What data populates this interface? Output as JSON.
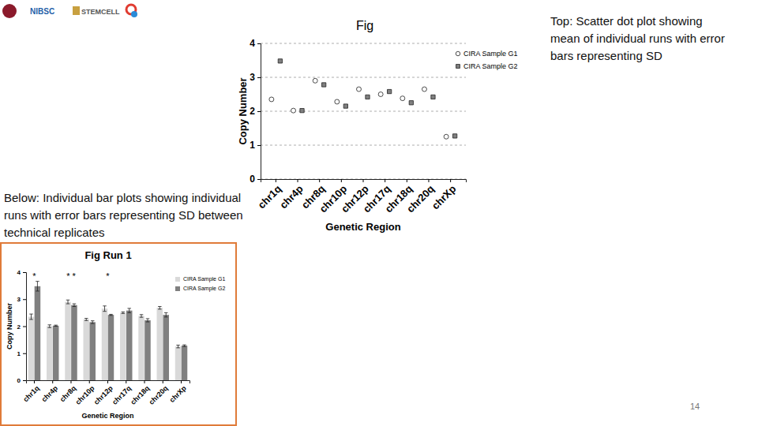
{
  "chart_data": [
    {
      "type": "scatter",
      "title": "Fig",
      "x_label": "Genetic Region",
      "y_label": "Copy Number",
      "categories": [
        "chr1q",
        "chr4p",
        "chr8q",
        "chr10p",
        "chr12p",
        "chr17q",
        "chr18q",
        "chr20q",
        "chrXp"
      ],
      "series": [
        {
          "name": "CIRA Sample G1",
          "color": "#ffffff",
          "marker": "circle",
          "values": [
            2.35,
            2.02,
            2.9,
            2.28,
            2.65,
            2.5,
            2.38,
            2.65,
            1.25
          ]
        },
        {
          "name": "CIRA Sample G2",
          "color": "#808080",
          "marker": "square",
          "values": [
            3.48,
            2.02,
            2.78,
            2.15,
            2.42,
            2.58,
            2.25,
            2.42,
            1.27
          ]
        }
      ],
      "ylim": [
        0,
        4
      ],
      "yticks": [
        0,
        1,
        2,
        3,
        4
      ],
      "grid": true,
      "legend": "top-right"
    },
    {
      "type": "bar",
      "title": "Fig Run 1",
      "x_label": "Genetic Region",
      "y_label": "Copy Number",
      "categories": [
        "chr1q",
        "chr4p",
        "chr8q",
        "chr10p",
        "chr12p",
        "chr17q",
        "chr18q",
        "chr20q",
        "chrXp"
      ],
      "series": [
        {
          "name": "CIRA Sample G1",
          "color": "#d9d9d9",
          "values": [
            2.35,
            2.0,
            2.9,
            2.25,
            2.65,
            2.5,
            2.38,
            2.68,
            1.25
          ],
          "errors": [
            0.1,
            0.05,
            0.07,
            0.04,
            0.1,
            0.03,
            0.05,
            0.05,
            0.05
          ]
        },
        {
          "name": "CIRA Sample G2",
          "color": "#808080",
          "values": [
            3.48,
            2.02,
            2.78,
            2.15,
            2.42,
            2.58,
            2.22,
            2.42,
            1.28
          ],
          "errors": [
            0.18,
            0.02,
            0.05,
            0.05,
            0.02,
            0.08,
            0.06,
            0.08,
            0.03
          ]
        }
      ],
      "ylim": [
        0,
        4
      ],
      "yticks": [
        0,
        1,
        2,
        3,
        4
      ],
      "grid": false,
      "legend": "top-right",
      "annotations": [
        {
          "text": "*",
          "x": "chr1q"
        },
        {
          "text": "* *",
          "x": "chr8q"
        },
        {
          "text": "*",
          "x": "chr12p"
        }
      ]
    }
  ],
  "slide": {
    "logos": [
      "NIBSC",
      "STEMCELL"
    ],
    "top_note": "Top: Scatter dot plot showing mean of individual runs with error bars representing SD",
    "bottom_note": "Below: Individual bar plots showing individual runs with error bars representing SD between technical replicates",
    "page_number": 14
  }
}
